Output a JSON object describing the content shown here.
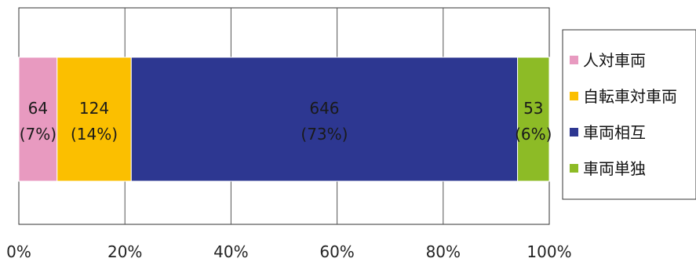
{
  "chart_data": {
    "type": "bar",
    "orientation": "horizontal",
    "stacking": "percent",
    "categories": [
      ""
    ],
    "series": [
      {
        "name": "人対車両",
        "value": 64,
        "percent_label": "(7%)",
        "value_label": "64",
        "color": "#e89ac0"
      },
      {
        "name": "自転車対車両",
        "value": 124,
        "percent_label": "(14%)",
        "value_label": "124",
        "color": "#fbbf00"
      },
      {
        "name": "車両相互",
        "value": 646,
        "percent_label": "(73%)",
        "value_label": "646",
        "color": "#2d3791"
      },
      {
        "name": "車両単独",
        "value": 53,
        "percent_label": "(6%)",
        "value_label": "53",
        "color": "#8dbb26"
      }
    ],
    "x_ticks": [
      "0%",
      "20%",
      "40%",
      "60%",
      "80%",
      "100%"
    ],
    "xlim": [
      0,
      100
    ],
    "grid": true,
    "legend_position": "right"
  }
}
